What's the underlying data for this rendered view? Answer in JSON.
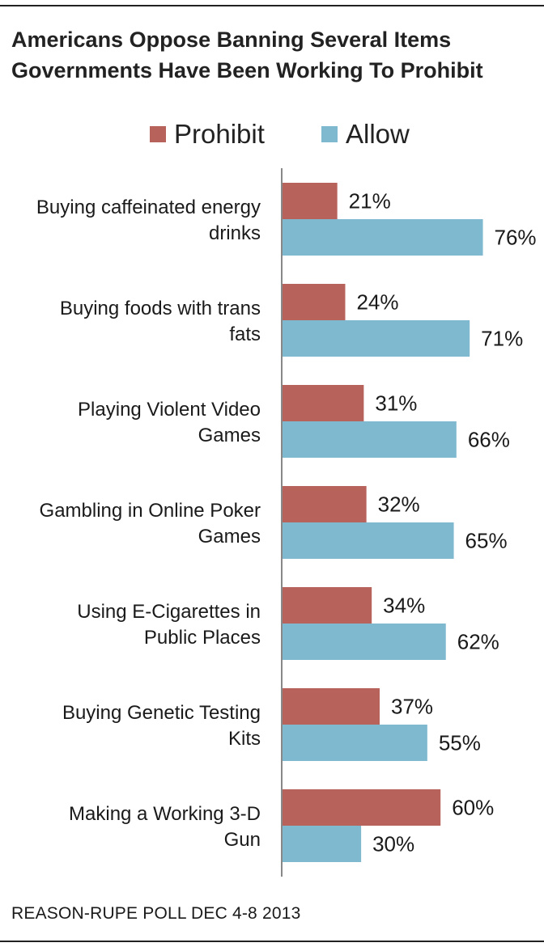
{
  "chart_data": {
    "type": "bar",
    "orientation": "horizontal",
    "title": "Americans Oppose Banning Several Items Governments Have Been Working To Prohibit",
    "source": "REASON-RUPE POLL DEC 4-8 2013",
    "legend_position": "top",
    "grid": false,
    "xlim": [
      0,
      100
    ],
    "categories": [
      [
        "Buying caffeinated energy",
        "drinks"
      ],
      [
        "Buying foods with trans",
        "fats"
      ],
      [
        "Playing Violent Video",
        "Games"
      ],
      [
        "Gambling in Online Poker",
        "Games"
      ],
      [
        "Using E-Cigarettes in",
        "Public Places"
      ],
      [
        "Buying Genetic Testing",
        "Kits"
      ],
      [
        "Making a Working 3-D",
        "Gun"
      ]
    ],
    "series": [
      {
        "name": "Prohibit",
        "color": "#b8625c",
        "values": [
          21,
          24,
          31,
          32,
          34,
          37,
          60
        ]
      },
      {
        "name": "Allow",
        "color": "#7fb9d0",
        "values": [
          76,
          71,
          66,
          65,
          62,
          55,
          30
        ]
      }
    ],
    "value_suffix": "%"
  }
}
